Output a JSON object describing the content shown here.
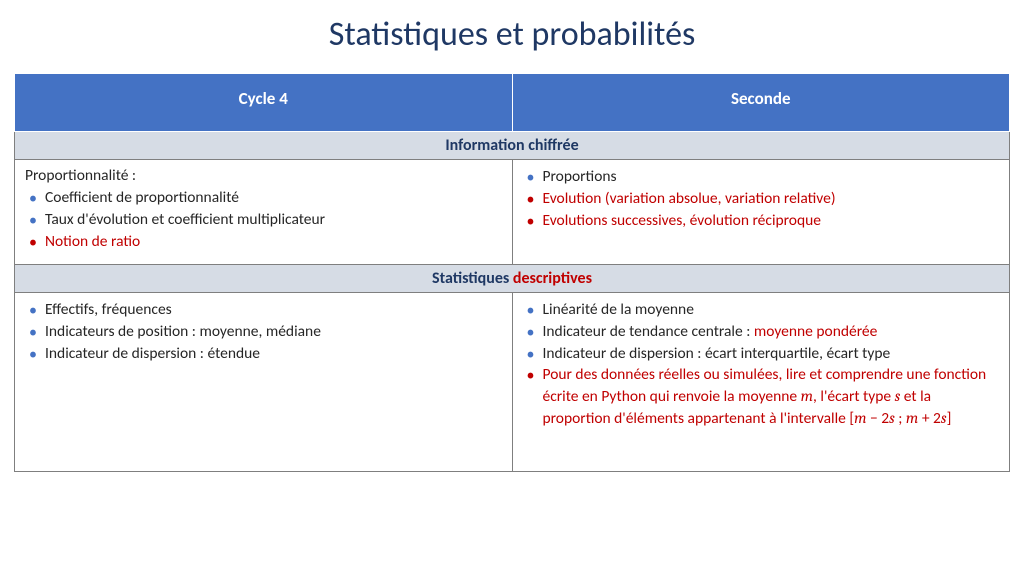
{
  "title": "Statistiques et probabilités",
  "columns": {
    "left": "Cycle 4",
    "right": "Seconde"
  },
  "section1": {
    "heading": "Information chiffrée",
    "left": {
      "label": "Proportionnalité :",
      "items": [
        {
          "text": "Coefficient de proportionnalité",
          "red": false
        },
        {
          "text": "Taux d'évolution et  coefficient multiplicateur",
          "red": false
        },
        {
          "text": "Notion de ratio",
          "red": true
        }
      ]
    },
    "right": {
      "items": [
        {
          "text": "Proportions",
          "red": false
        },
        {
          "text": "Evolution (variation absolue, variation relative)",
          "red": true
        },
        {
          "text": "Evolutions successives, évolution réciproque",
          "red": true
        }
      ]
    }
  },
  "section2": {
    "heading_part1": "Statistiques ",
    "heading_part2": "descriptives",
    "left": {
      "items": [
        {
          "text": "Effectifs, fréquences",
          "red": false
        },
        {
          "text": "Indicateurs de position : moyenne, médiane",
          "red": false
        },
        {
          "text": "Indicateur de dispersion : étendue",
          "red": false
        }
      ]
    },
    "right": {
      "items": [
        {
          "text": "Linéarité de la moyenne",
          "red": false
        },
        {
          "prefix": "Indicateur de tendance centrale : ",
          "suffix": "moyenne pondérée",
          "red": false,
          "mixed": true
        },
        {
          "text": "Indicateur de dispersion : écart interquartile, écart type",
          "red": false
        },
        {
          "red": true,
          "formula": true,
          "t1": "Pour des données réelles ou simulées, lire et comprendre une fonction écrite en Python qui renvoie la moyenne ",
          "v1": "m",
          "t2": ", l'écart type ",
          "v2": "s",
          "t3": " et la proportion d'éléments appartenant à l'intervalle [",
          "v3": "m",
          "t4": " − 2",
          "v4": "s",
          "t5": " ; ",
          "v5": "m",
          "t6": " + 2",
          "v6": "s",
          "t7": "]"
        }
      ]
    },
    "pad_rows": 2
  },
  "colors": {
    "title": "#1f3864",
    "header_bg": "#4472c4",
    "section_bg": "#d6dce5",
    "red": "#c00000",
    "border": "#7f7f7f"
  }
}
